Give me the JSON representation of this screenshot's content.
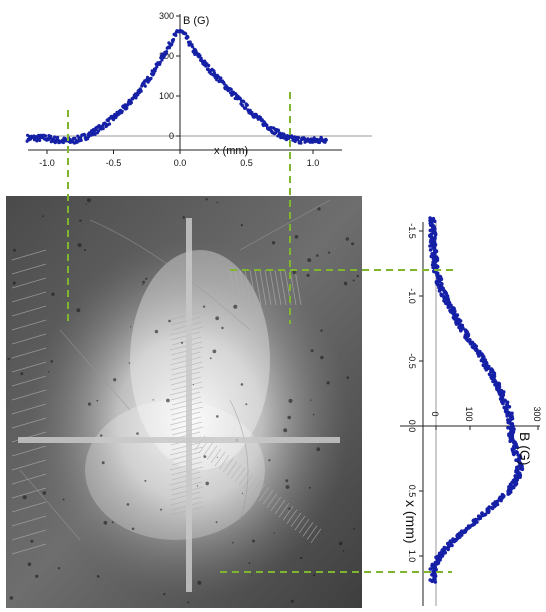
{
  "chart_data": [
    {
      "type": "scatter",
      "xlabel": "x (mm)",
      "ylabel": "B (G)",
      "xlim": [
        -1.15,
        1.2
      ],
      "ylim": [
        -20,
        300
      ],
      "xticks": [
        -1.0,
        -0.5,
        0.0,
        0.5,
        1.0
      ],
      "xtick_labels": [
        "-1.0",
        "-0.5",
        "0.0",
        "0.5",
        "1.0"
      ],
      "yticks": [
        0,
        100,
        200,
        300
      ],
      "ytick_labels": [
        "0",
        "100",
        "200",
        "300"
      ],
      "series": [
        {
          "color": "#1520a6",
          "x": [
            -1.1,
            -1.0,
            -0.9,
            -0.8,
            -0.7,
            -0.6,
            -0.5,
            -0.4,
            -0.3,
            -0.2,
            -0.1,
            -0.05,
            0.0,
            0.05,
            0.1,
            0.2,
            0.3,
            0.4,
            0.5,
            0.6,
            0.7,
            0.8,
            0.9,
            1.0,
            1.1
          ],
          "y": [
            -5,
            -5,
            -12,
            -12,
            0,
            20,
            45,
            75,
            115,
            160,
            215,
            245,
            265,
            245,
            215,
            175,
            140,
            105,
            72,
            40,
            15,
            -5,
            -10,
            -12,
            -8
          ]
        }
      ],
      "dashed_markers_x": [
        -0.85,
        0.8
      ],
      "marker_color": "#7fb62e"
    },
    {
      "type": "scatter",
      "orientation": "rotated 90 degrees (x axis vertical, B axis horizontal)",
      "xlabel": "x (mm)",
      "ylabel": "B (G)",
      "xlim": [
        -1.6,
        1.3
      ],
      "ylim": [
        -20,
        300
      ],
      "xticks": [
        -1.5,
        -1.0,
        -0.5,
        0.0,
        0.5,
        1.0
      ],
      "xtick_labels": [
        "-1.5",
        "-1.0",
        "-0.5",
        "0.0",
        "0.5",
        "1.0"
      ],
      "yticks": [
        0,
        100,
        300
      ],
      "ytick_labels": [
        "0",
        "100",
        "300"
      ],
      "series": [
        {
          "color": "#1520a6",
          "x": [
            -1.6,
            -1.5,
            -1.4,
            -1.3,
            -1.2,
            -1.1,
            -1.0,
            -0.9,
            -0.8,
            -0.7,
            -0.6,
            -0.5,
            -0.4,
            -0.3,
            -0.2,
            -0.1,
            0.0,
            0.1,
            0.2,
            0.3,
            0.4,
            0.5,
            0.6,
            0.7,
            0.8,
            0.9,
            1.0,
            1.1,
            1.2
          ],
          "y": [
            -10,
            -10,
            -10,
            -5,
            0,
            10,
            25,
            45,
            65,
            90,
            115,
            140,
            165,
            185,
            200,
            215,
            220,
            225,
            235,
            248,
            240,
            215,
            175,
            130,
            85,
            45,
            10,
            -8,
            -10
          ]
        }
      ],
      "dashed_markers_x": [
        -1.2,
        1.1
      ],
      "marker_color": "#7fb62e"
    }
  ],
  "image": {
    "description_icon": "grayscale-micrograph",
    "crosshair_color": "#c8c8c8"
  }
}
